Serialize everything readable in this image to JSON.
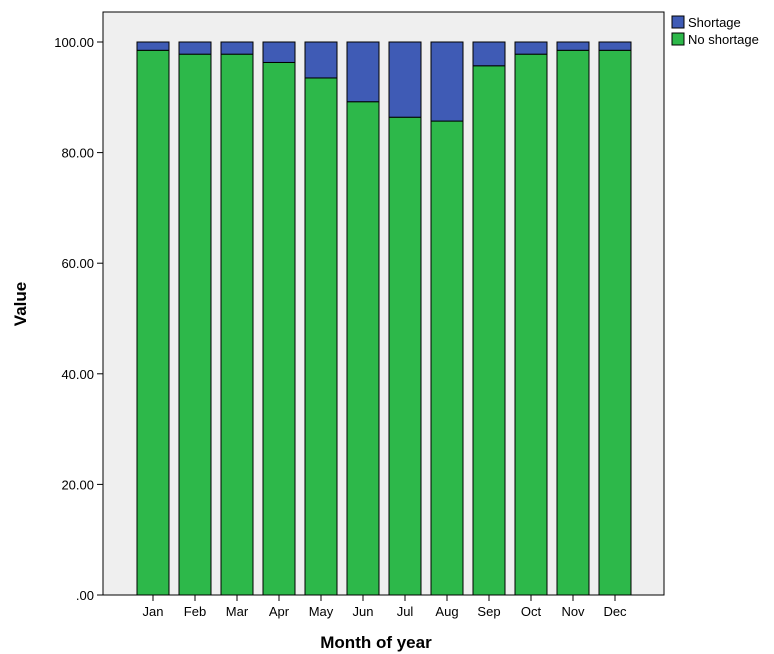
{
  "chart_data": {
    "type": "bar",
    "stacked": true,
    "title": "",
    "xlabel": "Month of year",
    "ylabel": "Value",
    "ylim": [
      0,
      100
    ],
    "yticks": [
      ".00",
      "20.00",
      "40.00",
      "60.00",
      "80.00",
      "100.00"
    ],
    "grid": false,
    "legend_position": "top-right",
    "categories": [
      "Jan",
      "Feb",
      "Mar",
      "Apr",
      "May",
      "Jun",
      "Jul",
      "Aug",
      "Sep",
      "Oct",
      "Nov",
      "Dec"
    ],
    "series": [
      {
        "name": "No shortage",
        "color": "#2db84a",
        "values": [
          98.5,
          97.8,
          97.8,
          96.3,
          93.5,
          89.2,
          86.4,
          85.7,
          95.7,
          97.8,
          98.5,
          98.5
        ]
      },
      {
        "name": "Shortage",
        "color": "#3f5bb5",
        "values": [
          1.5,
          2.2,
          2.2,
          3.7,
          6.5,
          10.8,
          13.6,
          14.3,
          4.3,
          2.2,
          1.5,
          1.5
        ]
      }
    ],
    "legend_order": [
      "Shortage",
      "No shortage"
    ]
  },
  "colors": {
    "plot_background": "#efefef",
    "bar_outline": "#000000"
  }
}
